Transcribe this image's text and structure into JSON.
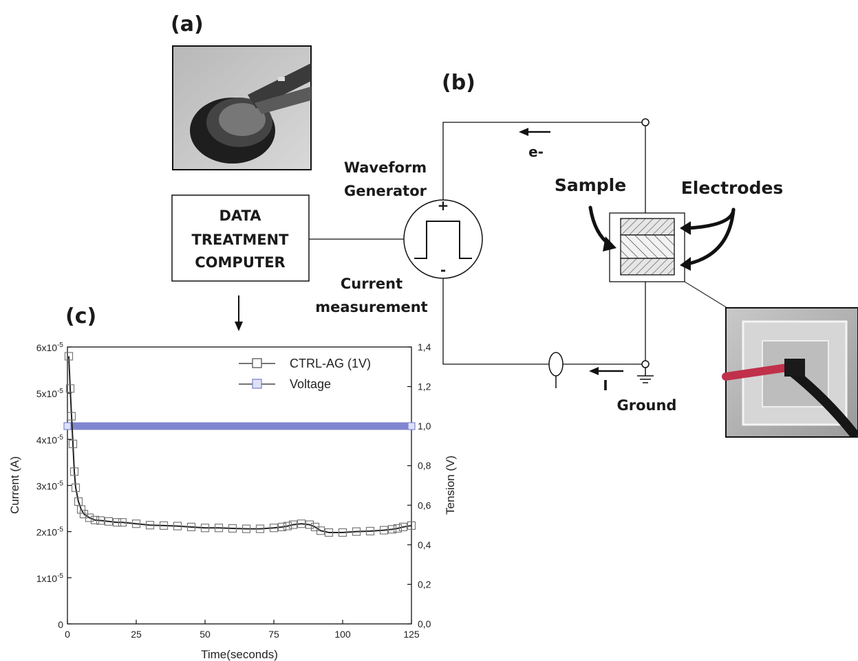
{
  "panels": {
    "a": "(a)",
    "b": "(b)",
    "c": "(c)"
  },
  "computer": {
    "line1": "DATA",
    "line2": "TREATMENT",
    "line3": "COMPUTER"
  },
  "waveform": {
    "line1": "Waveform",
    "line2": "Generator",
    "plus": "+",
    "minus": "-"
  },
  "current_measurement": {
    "line1": "Current",
    "line2": "measurement"
  },
  "circuit": {
    "electron": "e-",
    "current": "I",
    "ground": "Ground",
    "sample": "Sample",
    "electrodes": "Electrodes"
  },
  "chart_data": {
    "type": "scatter",
    "xlabel": "Time(seconds)",
    "ylabel": "Current (A)",
    "y2label": "Tension (V)",
    "xlim": [
      0,
      125
    ],
    "ylim": [
      0,
      6e-05
    ],
    "y2lim": [
      0,
      1.4
    ],
    "x_ticks": [
      "0",
      "25",
      "50",
      "75",
      "100",
      "125"
    ],
    "y_ticks": [
      {
        "base": "0",
        "exp": ""
      },
      {
        "base": "1x10",
        "exp": "-5"
      },
      {
        "base": "2x10",
        "exp": "-5"
      },
      {
        "base": "3x10",
        "exp": "-5"
      },
      {
        "base": "4x10",
        "exp": "-5"
      },
      {
        "base": "5x10",
        "exp": "-5"
      },
      {
        "base": "6x10",
        "exp": "-5"
      }
    ],
    "y2_ticks": [
      "0,0",
      "0,2",
      "0,4",
      "0,6",
      "0,8",
      "1,0",
      "1,2",
      "1,4"
    ],
    "legend": [
      "CTRL-AG (1V)",
      "Voltage"
    ],
    "legend_position": "top-right",
    "series": [
      {
        "name": "CTRL-AG (1V)",
        "axis": "left",
        "color": "#777777",
        "x": [
          0.5,
          1,
          1.5,
          2,
          2.5,
          3,
          4,
          5,
          6,
          8,
          10,
          12,
          15,
          18,
          20,
          25,
          30,
          35,
          40,
          45,
          50,
          55,
          60,
          65,
          70,
          75,
          78,
          80,
          82,
          85,
          88,
          90,
          92,
          95,
          100,
          105,
          110,
          115,
          118,
          120,
          122,
          125
        ],
        "y": [
          5.8e-05,
          5.1e-05,
          4.5e-05,
          3.9e-05,
          3.3e-05,
          2.95e-05,
          2.65e-05,
          2.48e-05,
          2.38e-05,
          2.3e-05,
          2.25e-05,
          2.24e-05,
          2.22e-05,
          2.2e-05,
          2.2e-05,
          2.17e-05,
          2.14e-05,
          2.13e-05,
          2.12e-05,
          2.1e-05,
          2.08e-05,
          2.08e-05,
          2.07e-05,
          2.06e-05,
          2.06e-05,
          2.08e-05,
          2.1e-05,
          2.12e-05,
          2.15e-05,
          2.17e-05,
          2.15e-05,
          2.1e-05,
          2.02e-05,
          1.98e-05,
          1.98e-05,
          2e-05,
          2.01e-05,
          2.03e-05,
          2.05e-05,
          2.07e-05,
          2.1e-05,
          2.13e-05
        ]
      },
      {
        "name": "Voltage",
        "axis": "right",
        "color": "#7f86d0",
        "x": [
          0,
          125
        ],
        "y": [
          1.0,
          1.0
        ]
      }
    ]
  }
}
